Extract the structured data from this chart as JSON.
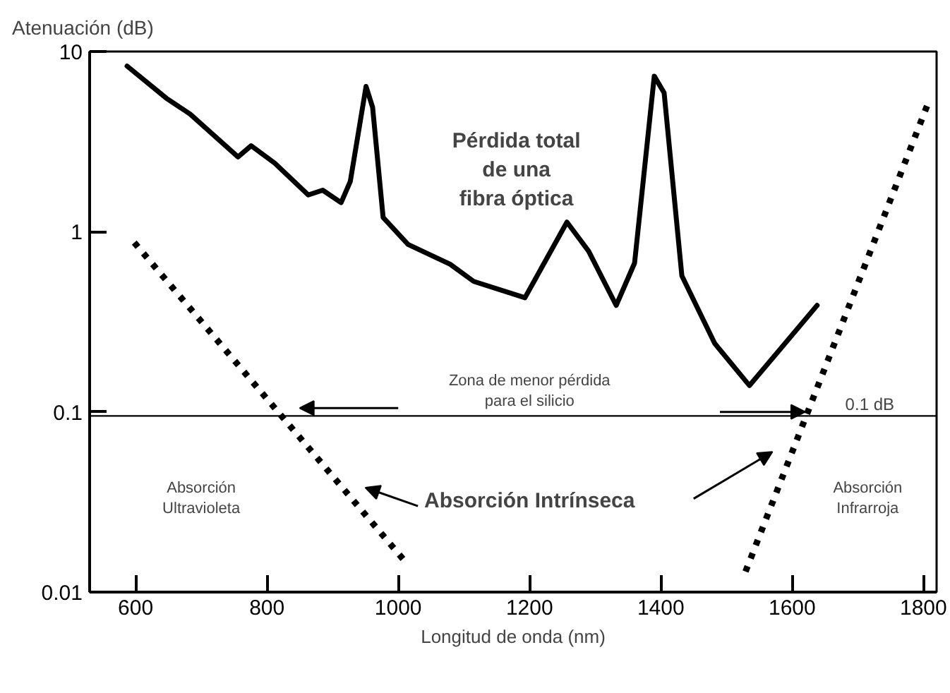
{
  "chart_data": {
    "type": "line",
    "xlabel": "Longitud de onda (nm)",
    "ylabel": "Atenuación (dB)",
    "log": "y",
    "xlim": [
      530,
      1820
    ],
    "ylim": [
      0.01,
      10
    ],
    "xticks": [
      600,
      800,
      1000,
      1200,
      1400,
      1600,
      1800
    ],
    "yticks": [
      0.01,
      0.1,
      1,
      10
    ],
    "grid": false,
    "series": [
      {
        "color": "#000000",
        "line_style": "solid",
        "x": [
          587,
          647,
          683,
          756,
          776,
          812,
          863,
          885,
          913,
          927,
          951,
          961,
          977,
          1015,
          1079,
          1115,
          1193,
          1257,
          1290,
          1332,
          1360,
          1390,
          1405,
          1432,
          1482,
          1535,
          1638
        ],
        "values": [
          8.3,
          5.5,
          4.5,
          2.6,
          3.0,
          2.4,
          1.6,
          1.7,
          1.45,
          1.9,
          6.4,
          4.9,
          1.2,
          0.85,
          0.66,
          0.53,
          0.43,
          1.13,
          0.78,
          0.39,
          0.67,
          7.3,
          5.9,
          0.57,
          0.24,
          0.14,
          0.39
        ]
      },
      {
        "color": "#000000",
        "line_style": "dotted",
        "x": [
          598,
          1009
        ],
        "values": [
          0.87,
          0.015
        ]
      },
      {
        "color": "#000000",
        "line_style": "dotted",
        "x": [
          1529,
          1810
        ],
        "values": [
          0.013,
          5.5
        ]
      }
    ],
    "ref_lines": [
      {
        "axis": "y",
        "value": 0.095,
        "label": "0.1 dB",
        "color": "#000000"
      }
    ],
    "annotations": [
      "Pérdida total\nde una\nfibra óptica",
      "Zona de menor pérdida\npara el silicio",
      "Absorción Intrínseca",
      "Absorción\nUltravioleta",
      "Absorción\nInfrarroja"
    ]
  }
}
